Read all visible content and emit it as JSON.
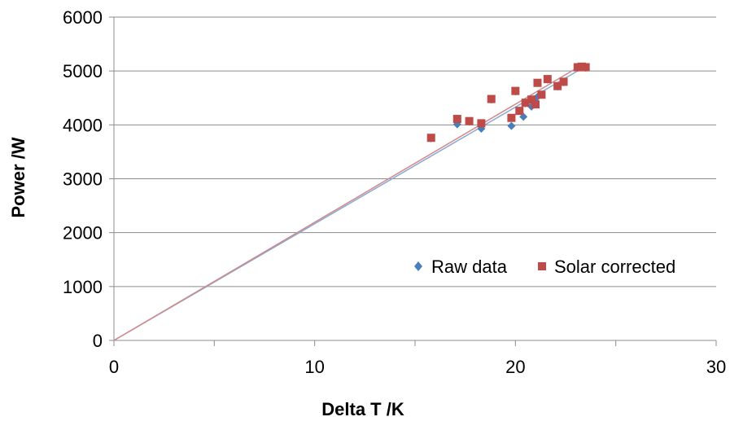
{
  "chart_data": {
    "type": "scatter",
    "xlabel": "Delta T /K",
    "ylabel": "Power /W",
    "xlim": [
      0,
      30
    ],
    "ylim": [
      0,
      6000
    ],
    "x_ticks": [
      "0",
      "10",
      "20",
      "30"
    ],
    "y_ticks": [
      "0",
      "1000",
      "2000",
      "3000",
      "4000",
      "5000",
      "6000"
    ],
    "grid": "horizontal",
    "legend_position": "bottom-right",
    "series": [
      {
        "name": "Raw data",
        "marker": "diamond",
        "color": "#4a7ebb",
        "points": [
          [
            15.8,
            3750
          ],
          [
            17.1,
            4010
          ],
          [
            17.7,
            4060
          ],
          [
            18.3,
            3930
          ],
          [
            18.8,
            4470
          ],
          [
            19.8,
            3980
          ],
          [
            20.0,
            4620
          ],
          [
            20.2,
            4260
          ],
          [
            20.4,
            4150
          ],
          [
            20.5,
            4400
          ],
          [
            20.8,
            4340
          ],
          [
            20.9,
            4460
          ],
          [
            21.0,
            4390
          ],
          [
            21.1,
            4520
          ],
          [
            21.3,
            4560
          ],
          [
            21.6,
            4840
          ],
          [
            22.1,
            4710
          ],
          [
            22.4,
            4790
          ],
          [
            23.1,
            5060
          ],
          [
            23.3,
            5070
          ],
          [
            23.5,
            5060
          ]
        ]
      },
      {
        "name": "Solar corrected",
        "marker": "square",
        "color": "#be4b48",
        "points": [
          [
            15.8,
            3760
          ],
          [
            17.1,
            4110
          ],
          [
            17.7,
            4070
          ],
          [
            18.3,
            4030
          ],
          [
            18.8,
            4480
          ],
          [
            19.8,
            4130
          ],
          [
            20.0,
            4630
          ],
          [
            20.2,
            4260
          ],
          [
            20.5,
            4410
          ],
          [
            20.8,
            4470
          ],
          [
            21.0,
            4380
          ],
          [
            21.1,
            4780
          ],
          [
            21.3,
            4560
          ],
          [
            21.6,
            4850
          ],
          [
            22.1,
            4720
          ],
          [
            22.4,
            4800
          ],
          [
            23.1,
            5070
          ],
          [
            23.3,
            5080
          ],
          [
            23.5,
            5070
          ]
        ]
      }
    ],
    "trendlines": [
      {
        "series": "Raw data",
        "color": "#8aa8d4",
        "slope": 216.5
      },
      {
        "series": "Solar corrected",
        "color": "#d08a88",
        "slope": 219.2
      }
    ]
  }
}
